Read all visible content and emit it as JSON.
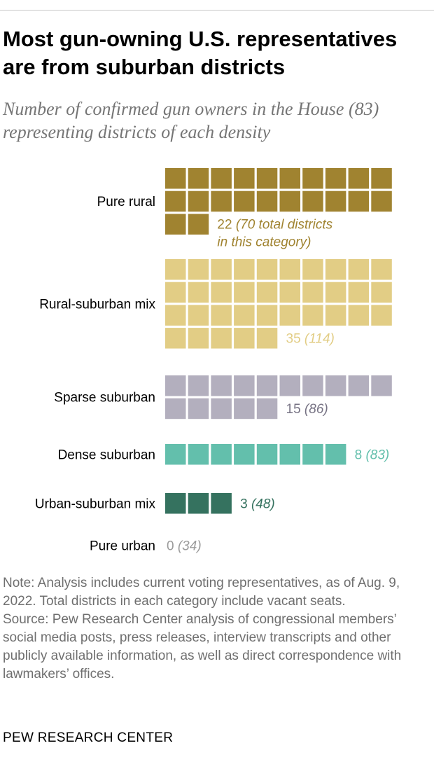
{
  "title": "Most gun-owning U.S. representatives are from suburban districts",
  "subtitle": "Number of confirmed gun owners in the House (83) representing districts of each density",
  "chart_data": {
    "type": "waffle",
    "title": "Most gun-owning U.S. representatives are from suburban districts",
    "subtitle": "Number of confirmed gun owners in the House (83) representing districts of each density",
    "units_per_row": 10,
    "categories": [
      {
        "label": "Pure rural",
        "value": 22,
        "total": 70,
        "value_text": "22",
        "total_text": "(70 total districts",
        "total_text_2": "in this category)",
        "color": "#a08330"
      },
      {
        "label": "Rural-suburban mix",
        "value": 35,
        "total": 114,
        "value_text": "35",
        "total_text": "(114)",
        "color": "#e2cd85"
      },
      {
        "label": "Sparse suburban",
        "value": 15,
        "total": 86,
        "value_text": "15",
        "total_text": "(86)",
        "color": "#b3afbe",
        "text_color": "#767283"
      },
      {
        "label": "Dense suburban",
        "value": 8,
        "total": 83,
        "value_text": "8",
        "total_text": "(83)",
        "color": "#63bfac"
      },
      {
        "label": "Urban-suburban mix",
        "value": 3,
        "total": 48,
        "value_text": "3",
        "total_text": "(48)",
        "color": "#35725f"
      },
      {
        "label": "Pure urban",
        "value": 0,
        "total": 34,
        "value_text": "0",
        "total_text": "(34)",
        "color": "#9b9b9b"
      }
    ]
  },
  "notes": {
    "note": "Note: Analysis includes current voting representatives, as of Aug. 9, 2022. Total districts in each category include vacant seats.",
    "source": "Source: Pew Research Center analysis of congressional members’ social media posts, press releases, interview transcripts and other publicly available information, as well as direct correspondence with lawmakers’ offices."
  },
  "brand": "PEW RESEARCH CENTER"
}
